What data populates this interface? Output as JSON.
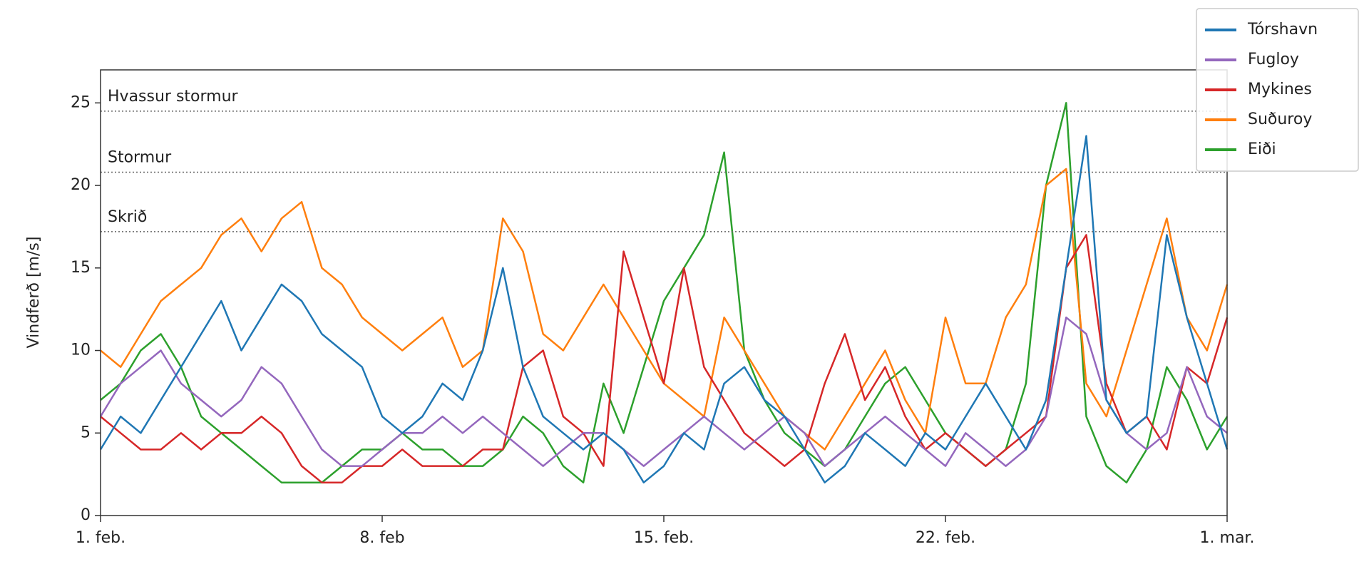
{
  "chart_data": {
    "type": "line",
    "ylabel": "Vindferð [m/s]",
    "x": [
      0,
      0.5,
      1,
      1.5,
      2,
      2.5,
      3,
      3.5,
      4,
      4.5,
      5,
      5.5,
      6,
      6.5,
      7,
      7.5,
      8,
      8.5,
      9,
      9.5,
      10,
      10.5,
      11,
      11.5,
      12,
      12.5,
      13,
      13.5,
      14,
      14.5,
      15,
      15.5,
      16,
      16.5,
      17,
      17.5,
      18,
      18.5,
      19,
      19.5,
      20,
      20.5,
      21,
      21.5,
      22,
      22.5,
      23,
      23.5,
      24,
      24.5,
      25,
      25.5,
      26,
      26.5,
      27,
      27.5,
      28
    ],
    "xlim": [
      0,
      28
    ],
    "xticks": [
      {
        "value": 0,
        "label": "1. feb."
      },
      {
        "value": 7,
        "label": "8. feb"
      },
      {
        "value": 14,
        "label": "15. feb."
      },
      {
        "value": 21,
        "label": "22. feb."
      },
      {
        "value": 28,
        "label": "1. mar."
      }
    ],
    "ylim": [
      0,
      27
    ],
    "yticks": [
      0,
      5,
      10,
      15,
      20,
      25
    ],
    "legend": "upper right",
    "annotations": [
      {
        "text": "Hvassur stormur",
        "y": 24.5
      },
      {
        "text": "Stormur",
        "y": 20.8
      },
      {
        "text": "Skrið",
        "y": 17.2
      }
    ],
    "series": [
      {
        "name": "Tórshavn",
        "color": "#1f77b4",
        "values": [
          4,
          6,
          5,
          7,
          9,
          11,
          13,
          10,
          12,
          14,
          13,
          11,
          10,
          9,
          6,
          5,
          6,
          8,
          7,
          10,
          15,
          9,
          6,
          5,
          4,
          5,
          4,
          2,
          3,
          5,
          4,
          8,
          9,
          7,
          6,
          4,
          2,
          3,
          5,
          4,
          3,
          5,
          4,
          6,
          8,
          6,
          4,
          7,
          15,
          23,
          7,
          5,
          6,
          17,
          12,
          8,
          4
        ]
      },
      {
        "name": "Fugloy",
        "color": "#9467bd",
        "values": [
          6,
          8,
          9,
          10,
          8,
          7,
          6,
          7,
          9,
          8,
          6,
          4,
          3,
          3,
          4,
          5,
          5,
          6,
          5,
          6,
          5,
          4,
          3,
          4,
          5,
          5,
          4,
          3,
          4,
          5,
          6,
          5,
          4,
          5,
          6,
          5,
          3,
          4,
          5,
          6,
          5,
          4,
          3,
          5,
          4,
          3,
          4,
          6,
          12,
          11,
          7,
          5,
          4,
          5,
          9,
          6,
          5
        ]
      },
      {
        "name": "Mykines",
        "color": "#d62728",
        "values": [
          6,
          5,
          4,
          4,
          5,
          4,
          5,
          5,
          6,
          5,
          3,
          2,
          2,
          3,
          3,
          4,
          3,
          3,
          3,
          4,
          4,
          9,
          10,
          6,
          5,
          3,
          16,
          12,
          8,
          15,
          9,
          7,
          5,
          4,
          3,
          4,
          8,
          11,
          7,
          9,
          6,
          4,
          5,
          4,
          3,
          4,
          5,
          6,
          15,
          17,
          8,
          5,
          6,
          4,
          9,
          8,
          12
        ]
      },
      {
        "name": "Suðuroy",
        "color": "#ff7f0e",
        "values": [
          10,
          9,
          11,
          13,
          14,
          15,
          17,
          18,
          16,
          18,
          19,
          15,
          14,
          12,
          11,
          10,
          11,
          12,
          9,
          10,
          18,
          16,
          11,
          10,
          12,
          14,
          12,
          10,
          8,
          7,
          6,
          12,
          10,
          8,
          6,
          5,
          4,
          6,
          8,
          10,
          7,
          5,
          12,
          8,
          8,
          12,
          14,
          20,
          21,
          8,
          6,
          10,
          14,
          18,
          12,
          10,
          14
        ]
      },
      {
        "name": "Eiði",
        "color": "#2ca02c",
        "values": [
          7,
          8,
          10,
          11,
          9,
          6,
          5,
          4,
          3,
          2,
          2,
          2,
          3,
          4,
          4,
          5,
          4,
          4,
          3,
          3,
          4,
          6,
          5,
          3,
          2,
          8,
          5,
          9,
          13,
          15,
          17,
          22,
          10,
          7,
          5,
          4,
          3,
          4,
          6,
          8,
          9,
          7,
          5,
          4,
          3,
          4,
          8,
          20,
          25,
          6,
          3,
          2,
          4,
          9,
          7,
          4,
          6
        ]
      }
    ]
  }
}
